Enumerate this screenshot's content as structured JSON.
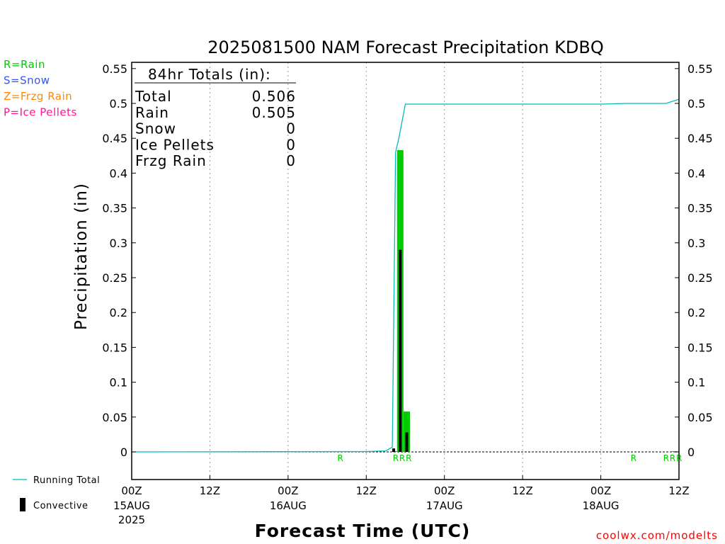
{
  "chart_data": {
    "type": "bar",
    "title": "2025081500 NAM Forecast Precipitation KDBQ",
    "xlabel": "Forecast Time (UTC)",
    "ylabel": "Precipitation (in)",
    "ylim": [
      -0.04,
      0.555
    ],
    "yticks": [
      "0",
      "0.05",
      "0.1",
      "0.15",
      "0.2",
      "0.25",
      "0.3",
      "0.35",
      "0.4",
      "0.45",
      "0.5",
      "0.55"
    ],
    "xlim_hours": [
      0,
      84
    ],
    "grid": "vertical dotted",
    "xticks": [
      {
        "hour": 0,
        "time": "00Z",
        "date": "15AUG",
        "year": "2025"
      },
      {
        "hour": 12,
        "time": "12Z",
        "date": "",
        "year": ""
      },
      {
        "hour": 24,
        "time": "00Z",
        "date": "16AUG",
        "year": ""
      },
      {
        "hour": 36,
        "time": "12Z",
        "date": "",
        "year": ""
      },
      {
        "hour": 48,
        "time": "00Z",
        "date": "17AUG",
        "year": ""
      },
      {
        "hour": 60,
        "time": "12Z",
        "date": "",
        "year": ""
      },
      {
        "hour": 72,
        "time": "00Z",
        "date": "18AUG",
        "year": ""
      },
      {
        "hour": 84,
        "time": "12Z",
        "date": "",
        "year": ""
      }
    ],
    "series": [
      {
        "name": "Rain",
        "color": "#00cc00",
        "kind": "bar",
        "x": [
          40,
          41,
          42,
          83
        ],
        "values": [
          0.001,
          0.433,
          0.058,
          0.001
        ]
      },
      {
        "name": "Convective",
        "color": "#000000",
        "kind": "bar",
        "x": [
          40,
          41,
          42
        ],
        "values": [
          0.005,
          0.29,
          0.028
        ]
      },
      {
        "name": "Running Total",
        "color": "#00bbbb",
        "kind": "line",
        "x": [
          0,
          36,
          39,
          40,
          40.5,
          41,
          42,
          60,
          72,
          76,
          82,
          84
        ],
        "values": [
          0,
          0.0005,
          0.0015,
          0.007,
          0.43,
          0.45,
          0.499,
          0.499,
          0.499,
          0.5,
          0.5,
          0.506
        ]
      }
    ],
    "precip_type_markers": [
      {
        "hour": 32,
        "label": "R"
      },
      {
        "hour": 40.5,
        "label": "R"
      },
      {
        "hour": 41.5,
        "label": "R"
      },
      {
        "hour": 42.5,
        "label": "R"
      },
      {
        "hour": 77,
        "label": "R"
      },
      {
        "hour": 82,
        "label": "R"
      },
      {
        "hour": 83,
        "label": "R"
      },
      {
        "hour": 84,
        "label": "R"
      }
    ],
    "totals_box": {
      "heading": "84hr Totals (in):",
      "rows": [
        {
          "label": "Total",
          "value": "0.506"
        },
        {
          "label": "Rain",
          "value": "0.505"
        },
        {
          "label": "Snow",
          "value": "0"
        },
        {
          "label": "Ice Pellets",
          "value": "0"
        },
        {
          "label": "Frzg Rain",
          "value": "0"
        }
      ]
    },
    "precip_key": [
      {
        "text": "R=Rain",
        "color": "#00cc00"
      },
      {
        "text": "S=Snow",
        "color": "#3355ff"
      },
      {
        "text": "Z=Frzg Rain",
        "color": "#ff8800"
      },
      {
        "text": "P=Ice Pellets",
        "color": "#ff1493"
      }
    ],
    "legend": [
      {
        "text": "Running Total",
        "color": "#00bbbb"
      },
      {
        "text": "Convective",
        "color": "#000000"
      }
    ]
  },
  "credit": "coolwx.com/modelts"
}
